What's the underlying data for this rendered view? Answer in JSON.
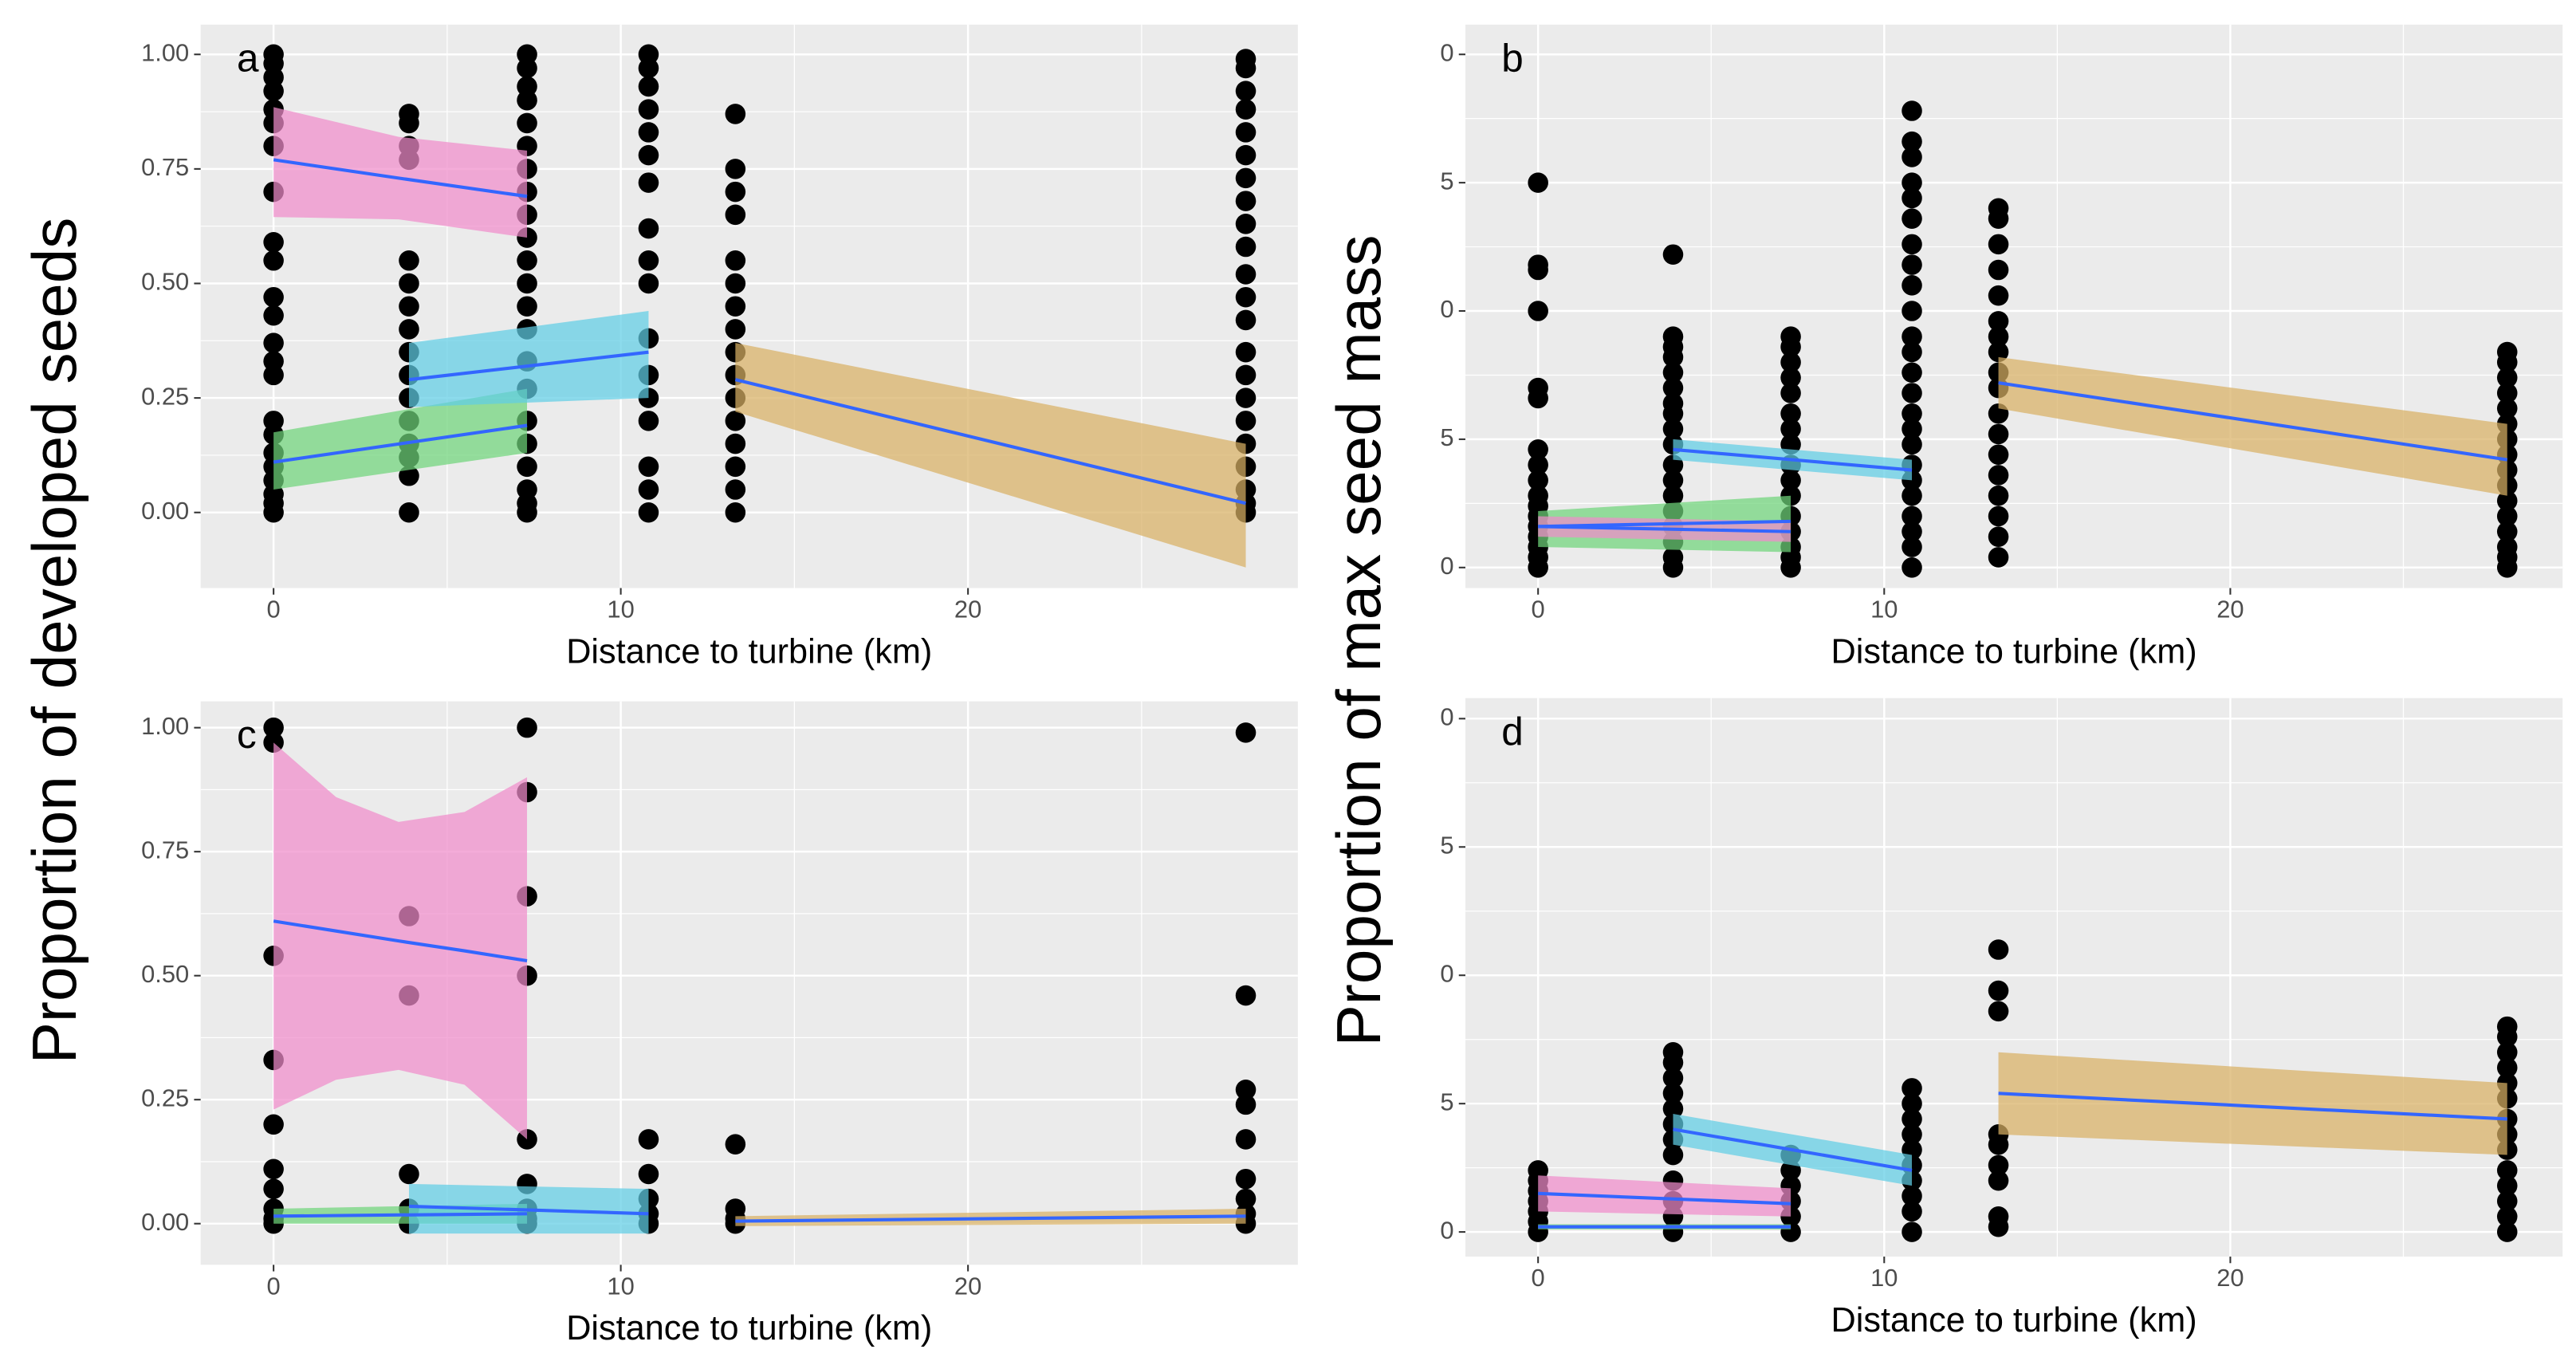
{
  "chart_data": [
    {
      "type": "scatter",
      "label": "a",
      "xlabel": "Distance to turbine (km)",
      "ylabel": "Proportion of developed seeds",
      "xlim": [
        -2.1,
        29.5
      ],
      "xticks": [
        0,
        10,
        20
      ],
      "xminor_ticks": [
        5,
        15,
        25
      ],
      "ylim": [
        -0.165,
        1.065
      ],
      "yticks": [
        {
          "value": 0,
          "label": "0.00"
        },
        {
          "value": 0.25,
          "label": "0.25"
        },
        {
          "value": 0.5,
          "label": "0.50"
        },
        {
          "value": 0.75,
          "label": "0.75"
        },
        {
          "value": 1,
          "label": "1.00"
        }
      ],
      "yminor_ticks": [
        0.125,
        0.375,
        0.625,
        0.875
      ],
      "grid": true,
      "point_color": "#000000",
      "line_color": "#3366FF",
      "points": [
        {
          "x": 0,
          "y": [
            1,
            0.98,
            0.95,
            0.92,
            0.88,
            0.85,
            0.8,
            0.7,
            0.59,
            0.55,
            0.47,
            0.43,
            0.37,
            0.33,
            0.3,
            0.2,
            0.17,
            0.13,
            0.1,
            0.07,
            0.04,
            0.02,
            0
          ]
        },
        {
          "x": 3.9,
          "y": [
            0.87,
            0.85,
            0.8,
            0.77,
            0.55,
            0.5,
            0.45,
            0.4,
            0.35,
            0.3,
            0.25,
            0.2,
            0.15,
            0.12,
            0.08,
            0
          ]
        },
        {
          "x": 7.3,
          "y": [
            1,
            0.97,
            0.93,
            0.9,
            0.85,
            0.8,
            0.75,
            0.7,
            0.65,
            0.6,
            0.55,
            0.5,
            0.45,
            0.4,
            0.33,
            0.27,
            0.2,
            0.15,
            0.1,
            0.05,
            0.02,
            0
          ]
        },
        {
          "x": 10.8,
          "y": [
            1,
            0.97,
            0.93,
            0.88,
            0.83,
            0.78,
            0.72,
            0.62,
            0.55,
            0.5,
            0.38,
            0.3,
            0.25,
            0.2,
            0.1,
            0.05,
            0
          ]
        },
        {
          "x": 13.3,
          "y": [
            0.87,
            0.75,
            0.7,
            0.65,
            0.55,
            0.5,
            0.45,
            0.4,
            0.35,
            0.3,
            0.25,
            0.2,
            0.15,
            0.1,
            0.05,
            0
          ]
        },
        {
          "x": 28,
          "y": [
            0.99,
            0.97,
            0.92,
            0.88,
            0.83,
            0.78,
            0.73,
            0.68,
            0.63,
            0.58,
            0.52,
            0.47,
            0.42,
            0.35,
            0.3,
            0.25,
            0.2,
            0.15,
            0.1,
            0.05,
            0.02,
            0
          ]
        }
      ],
      "fits": [
        {
          "color": "#F08CCB",
          "x": [
            0,
            3.6,
            7.3
          ],
          "values": [
            0.77,
            0.73,
            0.69
          ],
          "lower": [
            0.645,
            0.64,
            0.6
          ],
          "upper": [
            0.885,
            0.82,
            0.79
          ]
        },
        {
          "color": "#6FD47A",
          "x": [
            0,
            7.3
          ],
          "values": [
            0.11,
            0.19
          ],
          "lower": [
            0.05,
            0.13
          ],
          "upper": [
            0.175,
            0.27
          ]
        },
        {
          "color": "#5FCDE4",
          "x": [
            3.9,
            10.8
          ],
          "values": [
            0.29,
            0.35
          ],
          "lower": [
            0.23,
            0.25
          ],
          "upper": [
            0.37,
            0.44
          ]
        },
        {
          "color": "#D8B064",
          "x": [
            13.3,
            28
          ],
          "values": [
            0.29,
            0.02
          ],
          "lower": [
            0.22,
            -0.12
          ],
          "upper": [
            0.37,
            0.15
          ]
        }
      ]
    },
    {
      "type": "scatter",
      "label": "b",
      "xlabel": "Distance to turbine (km)",
      "ylabel": "Proportion of max seed mass",
      "xlim": [
        -2.1,
        29.6
      ],
      "xticks": [
        0,
        10,
        20
      ],
      "xminor_ticks": [
        5,
        15,
        25
      ],
      "ylim": [
        -0.04,
        1.058
      ],
      "yticks": [
        0,
        {
          "value": 0.25,
          "label": "5"
        },
        {
          "value": 0.5,
          "label": "0"
        },
        {
          "value": 0.75,
          "label": "5"
        },
        {
          "value": 1,
          "label": "0"
        }
      ],
      "yminor_ticks": [
        0.125,
        0.375,
        0.625,
        0.875
      ],
      "grid": true,
      "point_color": "#000000",
      "line_color": "#3366FF",
      "points": [
        {
          "x": 0,
          "y": [
            0.75,
            0.59,
            0.58,
            0.5,
            0.35,
            0.33,
            0.23,
            0.2,
            0.17,
            0.14,
            0.12,
            0.1,
            0.08,
            0.06,
            0.04,
            0.02,
            0
          ]
        },
        {
          "x": 3.9,
          "y": [
            0.61,
            0.45,
            0.43,
            0.41,
            0.38,
            0.35,
            0.32,
            0.3,
            0.27,
            0.24,
            0.2,
            0.17,
            0.14,
            0.11,
            0.08,
            0.05,
            0.02,
            0
          ]
        },
        {
          "x": 7.3,
          "y": [
            0.45,
            0.43,
            0.4,
            0.37,
            0.34,
            0.3,
            0.27,
            0.24,
            0.2,
            0.17,
            0.14,
            0.1,
            0.07,
            0.04,
            0.02,
            0
          ]
        },
        {
          "x": 10.8,
          "y": [
            0.89,
            0.83,
            0.8,
            0.75,
            0.72,
            0.68,
            0.63,
            0.59,
            0.55,
            0.5,
            0.45,
            0.42,
            0.38,
            0.34,
            0.3,
            0.27,
            0.24,
            0.2,
            0.17,
            0.14,
            0.1,
            0.07,
            0.04,
            0
          ]
        },
        {
          "x": 13.3,
          "y": [
            0.7,
            0.68,
            0.63,
            0.58,
            0.53,
            0.48,
            0.45,
            0.42,
            0.38,
            0.35,
            0.3,
            0.26,
            0.22,
            0.18,
            0.14,
            0.1,
            0.06,
            0.02
          ]
        },
        {
          "x": 28,
          "y": [
            0.42,
            0.4,
            0.37,
            0.34,
            0.31,
            0.28,
            0.25,
            0.22,
            0.19,
            0.16,
            0.13,
            0.1,
            0.07,
            0.04,
            0.02,
            0
          ]
        }
      ],
      "fits": [
        {
          "color": "#6FD47A",
          "x": [
            0,
            7.3
          ],
          "values": [
            0.08,
            0.09
          ],
          "lower": [
            0.04,
            0.03
          ],
          "upper": [
            0.11,
            0.14
          ]
        },
        {
          "color": "#F08CCB",
          "x": [
            0,
            7.3
          ],
          "values": [
            0.08,
            0.07
          ],
          "lower": [
            0.06,
            0.05
          ],
          "upper": [
            0.1,
            0.09
          ]
        },
        {
          "color": "#5FCDE4",
          "x": [
            3.9,
            10.8
          ],
          "values": [
            0.23,
            0.19
          ],
          "lower": [
            0.21,
            0.17
          ],
          "upper": [
            0.25,
            0.21
          ]
        },
        {
          "color": "#D8B064",
          "x": [
            13.3,
            28
          ],
          "values": [
            0.36,
            0.21
          ],
          "lower": [
            0.31,
            0.14
          ],
          "upper": [
            0.41,
            0.28
          ]
        }
      ]
    },
    {
      "type": "scatter",
      "label": "c",
      "xlabel": "Distance to turbine (km)",
      "xlim": [
        -2.1,
        29.5
      ],
      "xticks": [
        0,
        10,
        20
      ],
      "xminor_ticks": [
        5,
        15,
        25
      ],
      "ylim": [
        -0.083,
        1.053
      ],
      "yticks": [
        {
          "value": 0,
          "label": "0.00"
        },
        {
          "value": 0.25,
          "label": "0.25"
        },
        {
          "value": 0.5,
          "label": "0.50"
        },
        {
          "value": 0.75,
          "label": "0.75"
        },
        {
          "value": 1,
          "label": "1.00"
        }
      ],
      "yminor_ticks": [
        0.125,
        0.375,
        0.625,
        0.875
      ],
      "grid": true,
      "point_color": "#000000",
      "line_color": "#3366FF",
      "points": [
        {
          "x": 0,
          "y": [
            1,
            0.97,
            0.54,
            0.33,
            0.2,
            0.11,
            0.07,
            0.03,
            0.01,
            0
          ]
        },
        {
          "x": 3.9,
          "y": [
            0.62,
            0.46,
            0.1,
            0.03,
            0
          ]
        },
        {
          "x": 7.3,
          "y": [
            1,
            0.87,
            0.66,
            0.5,
            0.17,
            0.08,
            0.03,
            0.01,
            0
          ]
        },
        {
          "x": 10.8,
          "y": [
            0.17,
            0.1,
            0.05,
            0.02,
            0
          ]
        },
        {
          "x": 13.3,
          "y": [
            0.16,
            0.03,
            0.01,
            0
          ]
        },
        {
          "x": 28,
          "y": [
            0.99,
            0.46,
            0.27,
            0.24,
            0.17,
            0.09,
            0.05,
            0.02,
            0
          ]
        }
      ],
      "fits": [
        {
          "color": "#F08CCB",
          "x": [
            0,
            1.8,
            3.6,
            5.5,
            7.3
          ],
          "values": [
            0.61,
            0.59,
            0.57,
            0.55,
            0.53
          ],
          "lower": [
            0.23,
            0.29,
            0.31,
            0.28,
            0.17
          ],
          "upper": [
            0.97,
            0.86,
            0.81,
            0.83,
            0.9
          ]
        },
        {
          "color": "#6FD47A",
          "x": [
            0,
            7.3
          ],
          "values": [
            0.015,
            0.02
          ],
          "lower": [
            0,
            0
          ],
          "upper": [
            0.03,
            0.04
          ]
        },
        {
          "color": "#5FCDE4",
          "x": [
            3.9,
            10.8
          ],
          "values": [
            0.035,
            0.02
          ],
          "lower": [
            -0.02,
            -0.02
          ],
          "upper": [
            0.08,
            0.07
          ]
        },
        {
          "color": "#D8B064",
          "x": [
            13.3,
            28
          ],
          "values": [
            0.005,
            0.015
          ],
          "lower": [
            -0.005,
            0
          ],
          "upper": [
            0.015,
            0.03
          ]
        }
      ]
    },
    {
      "type": "scatter",
      "label": "d",
      "xlabel": "Distance to turbine (km)",
      "xlim": [
        -2.1,
        29.6
      ],
      "xticks": [
        0,
        10,
        20
      ],
      "xminor_ticks": [
        5,
        15,
        25
      ],
      "ylim": [
        -0.048,
        1.04
      ],
      "yticks": [
        0,
        {
          "value": 0.25,
          "label": "5"
        },
        {
          "value": 0.5,
          "label": "0"
        },
        {
          "value": 0.75,
          "label": "5"
        },
        {
          "value": 1,
          "label": "0"
        }
      ],
      "yminor_ticks": [
        0.125,
        0.375,
        0.625,
        0.875
      ],
      "grid": true,
      "point_color": "#000000",
      "line_color": "#3366FF",
      "points": [
        {
          "x": 0,
          "y": [
            0.12,
            0.1,
            0.08,
            0.06,
            0.04,
            0.02,
            0
          ]
        },
        {
          "x": 3.9,
          "y": [
            0.35,
            0.33,
            0.3,
            0.27,
            0.24,
            0.21,
            0.18,
            0.15,
            0.1,
            0.06,
            0.03,
            0
          ]
        },
        {
          "x": 7.3,
          "y": [
            0.15,
            0.12,
            0.09,
            0.06,
            0.03,
            0
          ]
        },
        {
          "x": 10.8,
          "y": [
            0.28,
            0.25,
            0.22,
            0.19,
            0.16,
            0.13,
            0.1,
            0.07,
            0.04,
            0
          ]
        },
        {
          "x": 13.3,
          "y": [
            0.55,
            0.47,
            0.43,
            0.19,
            0.17,
            0.13,
            0.1,
            0.03,
            0.01
          ]
        },
        {
          "x": 28,
          "y": [
            0.4,
            0.38,
            0.35,
            0.32,
            0.29,
            0.26,
            0.22,
            0.19,
            0.16,
            0.12,
            0.09,
            0.06,
            0.03,
            0
          ]
        }
      ],
      "fits": [
        {
          "color": "#F08CCB",
          "x": [
            0,
            7.3
          ],
          "values": [
            0.075,
            0.055
          ],
          "lower": [
            0.04,
            0.03
          ],
          "upper": [
            0.11,
            0.085
          ]
        },
        {
          "color": "#6FD47A",
          "x": [
            0,
            7.3
          ],
          "values": [
            0.01,
            0.01
          ],
          "lower": [
            0.005,
            0.005
          ],
          "upper": [
            0.015,
            0.015
          ]
        },
        {
          "color": "#5FCDE4",
          "x": [
            3.9,
            10.8
          ],
          "values": [
            0.2,
            0.12
          ],
          "lower": [
            0.17,
            0.09
          ],
          "upper": [
            0.23,
            0.15
          ]
        },
        {
          "color": "#D8B064",
          "x": [
            13.3,
            28
          ],
          "values": [
            0.27,
            0.22
          ],
          "lower": [
            0.19,
            0.15
          ],
          "upper": [
            0.35,
            0.29
          ]
        }
      ]
    }
  ]
}
